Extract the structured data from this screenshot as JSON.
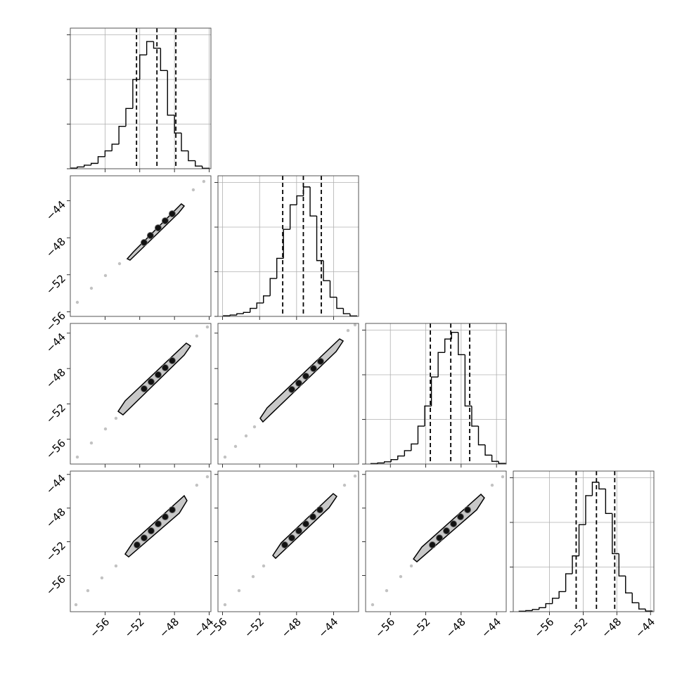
{
  "chart_data": [
    {
      "type": "histogram",
      "xlim": [
        -60,
        -43.8
      ],
      "xticks": [
        -56,
        -52,
        -48,
        -44
      ],
      "ylim": [
        0,
        3150
      ],
      "yticks": [
        0,
        1000,
        2000,
        3000
      ],
      "grid": true,
      "bins": [
        -60,
        -59.2,
        -58.4,
        -57.6,
        -56.8,
        -56,
        -55.2,
        -54.4,
        -53.6,
        -52.8,
        -52,
        -51.2,
        -50.4,
        -49.6,
        -48.8,
        -48,
        -47.2,
        -46.4,
        -45.6,
        -44.8,
        -44
      ],
      "values": [
        15,
        40,
        80,
        120,
        270,
        400,
        550,
        950,
        1350,
        2000,
        2550,
        2850,
        2700,
        2200,
        1200,
        800,
        400,
        180,
        60,
        10
      ],
      "quantiles": [
        -52.37,
        -50.02,
        -47.84
      ],
      "color": "#000000"
    },
    {
      "type": "scatter",
      "xlim": [
        -60,
        -43.8
      ],
      "xticks": [
        -56,
        -52,
        -48,
        -44
      ],
      "ylim": [
        -56.5,
        -41.3
      ],
      "yticks": [
        {
          "value": -56,
          "label": "−56"
        },
        {
          "value": -52,
          "label": "−52"
        },
        {
          "value": -48,
          "label": "−48"
        },
        {
          "value": -44,
          "label": "−44"
        }
      ],
      "grid": false,
      "samples": {
        "x": [
          -59.19,
          -57.57,
          -55.95,
          -54.33,
          -45.83,
          -44.62
        ],
        "y": [
          -54.98,
          -53.46,
          -52.09,
          -50.8,
          -42.82,
          -41.91
        ]
      },
      "contour": {
        "x": [
          -53.44,
          -52.71,
          -47.21,
          -46.88,
          -47.53,
          -53.12
        ],
        "y": [
          -50.27,
          -49.51,
          -44.34,
          -44.57,
          -45.33,
          -50.42
        ]
      },
      "core": {
        "x": [
          -51.5,
          -50.77,
          -49.88,
          -49.07,
          -48.26
        ],
        "y": [
          -48.52,
          -47.76,
          -46.93,
          -46.17,
          -45.41
        ]
      },
      "color": "#000000"
    },
    {
      "type": "histogram",
      "xlim": [
        -56.5,
        -41.3
      ],
      "xticks": [
        -56,
        -52,
        -48,
        -44
      ],
      "ylim": [
        0,
        3150
      ],
      "yticks": [
        0,
        1000,
        2000,
        3000
      ],
      "grid": true,
      "bins": [
        -55.9,
        -55.18,
        -54.46,
        -53.74,
        -53.02,
        -52.3,
        -51.58,
        -50.86,
        -50.14,
        -49.42,
        -48.7,
        -47.98,
        -47.26,
        -46.54,
        -45.82,
        -45.1,
        -44.38,
        -43.66,
        -42.94,
        -42.22,
        -41.5
      ],
      "values": [
        15,
        30,
        60,
        90,
        180,
        300,
        460,
        850,
        1300,
        1950,
        2500,
        2700,
        2900,
        2250,
        1250,
        800,
        430,
        180,
        60,
        10
      ],
      "quantiles": [
        -49.5,
        -47.27,
        -45.33
      ],
      "color": "#000000"
    },
    {
      "type": "scatter",
      "xlim": [
        -60,
        -43.8
      ],
      "xticks": [
        -56,
        -52,
        -48,
        -44
      ],
      "ylim": [
        -58.8,
        -42.9
      ],
      "yticks": [
        {
          "value": -56,
          "label": "−56"
        },
        {
          "value": -52,
          "label": "−52"
        },
        {
          "value": -48,
          "label": "−48"
        },
        {
          "value": -44,
          "label": "−44"
        }
      ],
      "grid": false,
      "samples": {
        "x": [
          -59.19,
          -57.57,
          -55.95,
          -54.74,
          -45.43,
          -44.21
        ],
        "y": [
          -58.01,
          -56.42,
          -54.83,
          -53.63,
          -44.33,
          -43.3
        ]
      },
      "contour": {
        "x": [
          -54.49,
          -53.68,
          -46.64,
          -46.15,
          -46.88,
          -53.93
        ],
        "y": [
          -52.84,
          -51.65,
          -45.13,
          -45.45,
          -46.48,
          -53.24
        ]
      },
      "core": {
        "x": [
          -51.5,
          -50.69,
          -49.88,
          -49.07,
          -48.26
        ],
        "y": [
          -50.29,
          -49.5,
          -48.7,
          -47.91,
          -47.11
        ]
      },
      "color": "#000000"
    },
    {
      "type": "scatter",
      "xlim": [
        -56.5,
        -41.3
      ],
      "xticks": [
        -56,
        -52,
        -48,
        -44
      ],
      "ylim": [
        -58.8,
        -42.9
      ],
      "yticks": [
        -56,
        -52,
        -48,
        -44
      ],
      "grid": false,
      "samples": {
        "x": [
          -55.74,
          -54.6,
          -53.46,
          -52.55,
          -42.44,
          -41.68
        ],
        "y": [
          -58.01,
          -56.81,
          -55.62,
          -54.59,
          -43.7,
          -43.06
        ]
      },
      "contour": {
        "x": [
          -51.94,
          -51.18,
          -43.35,
          -42.97,
          -43.73,
          -51.64
        ],
        "y": [
          -53.63,
          -52.44,
          -44.65,
          -44.89,
          -46.08,
          -54.03
        ]
      },
      "core": {
        "x": [
          -48.52,
          -47.76,
          -47.0,
          -46.17,
          -45.41
        ],
        "y": [
          -50.37,
          -49.66,
          -48.86,
          -48.0,
          -47.19
        ]
      },
      "color": "#000000"
    },
    {
      "type": "histogram",
      "xlim": [
        -58.8,
        -42.9
      ],
      "xticks": [
        -56,
        -52,
        -48,
        -44
      ],
      "ylim": [
        0,
        3150
      ],
      "yticks": [
        0,
        1000,
        2000,
        3000
      ],
      "grid": true,
      "bins": [
        -58.2,
        -57.44,
        -56.68,
        -55.92,
        -55.16,
        -54.4,
        -53.64,
        -52.88,
        -52.12,
        -51.36,
        -50.6,
        -49.84,
        -49.08,
        -48.32,
        -47.56,
        -46.8,
        -46.04,
        -45.28,
        -44.52,
        -43.76,
        -43.0
      ],
      "values": [
        10,
        25,
        50,
        100,
        180,
        300,
        450,
        850,
        1300,
        1950,
        2500,
        2800,
        2950,
        2450,
        1300,
        850,
        430,
        200,
        60,
        15
      ],
      "quantiles": [
        -51.48,
        -49.17,
        -47.03
      ],
      "color": "#000000"
    },
    {
      "type": "scatter",
      "xlim": [
        -60,
        -43.8
      ],
      "xticks": [
        {
          "value": -56,
          "label": "−56"
        },
        {
          "value": -52,
          "label": "−52"
        },
        {
          "value": -48,
          "label": "−48"
        },
        {
          "value": -44,
          "label": "−44"
        }
      ],
      "ylim": [
        -60.3,
        -43.6
      ],
      "yticks": [
        {
          "value": -56,
          "label": "−56"
        },
        {
          "value": -52,
          "label": "−52"
        },
        {
          "value": -48,
          "label": "−48"
        },
        {
          "value": -44,
          "label": "−44"
        }
      ],
      "grid": false,
      "samples": {
        "x": [
          -59.35,
          -57.98,
          -56.36,
          -54.74,
          -45.43,
          -44.21
        ],
        "y": [
          -59.47,
          -57.8,
          -56.29,
          -54.87,
          -45.28,
          -44.27
        ]
      },
      "contour": {
        "x": [
          -53.68,
          -52.71,
          -46.88,
          -46.56,
          -47.45,
          -53.28
        ],
        "y": [
          -53.46,
          -51.95,
          -46.53,
          -47.11,
          -48.61,
          -53.79
        ]
      },
      "core": {
        "x": [
          -52.31,
          -51.5,
          -50.69,
          -49.88,
          -49.07,
          -48.26
        ],
        "y": [
          -52.37,
          -51.54,
          -50.7,
          -49.87,
          -49.03,
          -48.2
        ]
      },
      "color": "#000000"
    },
    {
      "type": "scatter",
      "xlim": [
        -56.5,
        -41.3
      ],
      "xticks": [
        {
          "value": -56,
          "label": "−56"
        },
        {
          "value": -52,
          "label": "−52"
        },
        {
          "value": -48,
          "label": "−48"
        },
        {
          "value": -44,
          "label": "−44"
        }
      ],
      "ylim": [
        -60.3,
        -43.6
      ],
      "yticks": [
        -56,
        -52,
        -48,
        -44
      ],
      "grid": false,
      "samples": {
        "x": [
          -55.74,
          -54.22,
          -52.7,
          -51.56,
          -42.82,
          -41.68
        ],
        "y": [
          -59.47,
          -57.8,
          -56.13,
          -54.87,
          -45.28,
          -44.19
        ]
      },
      "contour": {
        "x": [
          -50.57,
          -49.66,
          -44.04,
          -43.66,
          -44.49,
          -50.27
        ],
        "y": [
          -53.62,
          -52.12,
          -46.28,
          -46.61,
          -47.95,
          -53.96
        ]
      },
      "core": {
        "x": [
          -49.28,
          -48.52,
          -47.76,
          -47.0,
          -46.24,
          -45.48
        ],
        "y": [
          -52.37,
          -51.54,
          -50.7,
          -49.87,
          -49.03,
          -48.2
        ]
      },
      "color": "#000000"
    },
    {
      "type": "scatter",
      "xlim": [
        -58.8,
        -42.9
      ],
      "xticks": [
        {
          "value": -56,
          "label": "−56"
        },
        {
          "value": -52,
          "label": "−52"
        },
        {
          "value": -48,
          "label": "−48"
        },
        {
          "value": -44,
          "label": "−44"
        }
      ],
      "ylim": [
        -60.3,
        -43.6
      ],
      "yticks": [
        -56,
        -52,
        -48,
        -44
      ],
      "grid": false,
      "samples": {
        "x": [
          -58.01,
          -56.42,
          -54.83,
          -53.63,
          -44.49,
          -43.3
        ],
        "y": [
          -59.47,
          -57.8,
          -56.13,
          -54.87,
          -45.28,
          -44.27
        ]
      },
      "contour": {
        "x": [
          -53.39,
          -52.44,
          -45.76,
          -45.37,
          -46.24,
          -53.0
        ],
        "y": [
          -54.04,
          -52.62,
          -46.36,
          -46.78,
          -48.2,
          -54.37
        ]
      },
      "core": {
        "x": [
          -51.25,
          -50.45,
          -49.66,
          -48.86,
          -48.07,
          -47.27
        ],
        "y": [
          -52.37,
          -51.54,
          -50.7,
          -49.87,
          -49.03,
          -48.2
        ]
      },
      "color": "#000000"
    },
    {
      "type": "histogram",
      "xlim": [
        -60.3,
        -43.6
      ],
      "xticks": [
        {
          "value": -56,
          "label": "−56"
        },
        {
          "value": -52,
          "label": "−52"
        },
        {
          "value": -48,
          "label": "−48"
        },
        {
          "value": -44,
          "label": "−44"
        }
      ],
      "ylim": [
        0,
        3150
      ],
      "yticks": [
        0,
        1000,
        2000,
        3000
      ],
      "grid": true,
      "bins": [
        -59.6,
        -58.81,
        -58.02,
        -57.23,
        -56.44,
        -55.65,
        -54.86,
        -54.07,
        -53.28,
        -52.49,
        -51.7,
        -50.91,
        -50.12,
        -49.33,
        -48.54,
        -47.75,
        -46.96,
        -46.17,
        -45.38,
        -44.59,
        -43.8
      ],
      "values": [
        10,
        25,
        50,
        90,
        180,
        300,
        450,
        850,
        1250,
        1950,
        2600,
        2900,
        2750,
        2200,
        1300,
        800,
        420,
        200,
        60,
        15
      ],
      "quantiles": [
        -52.83,
        -50.42,
        -48.25
      ],
      "color": "#000000"
    }
  ]
}
